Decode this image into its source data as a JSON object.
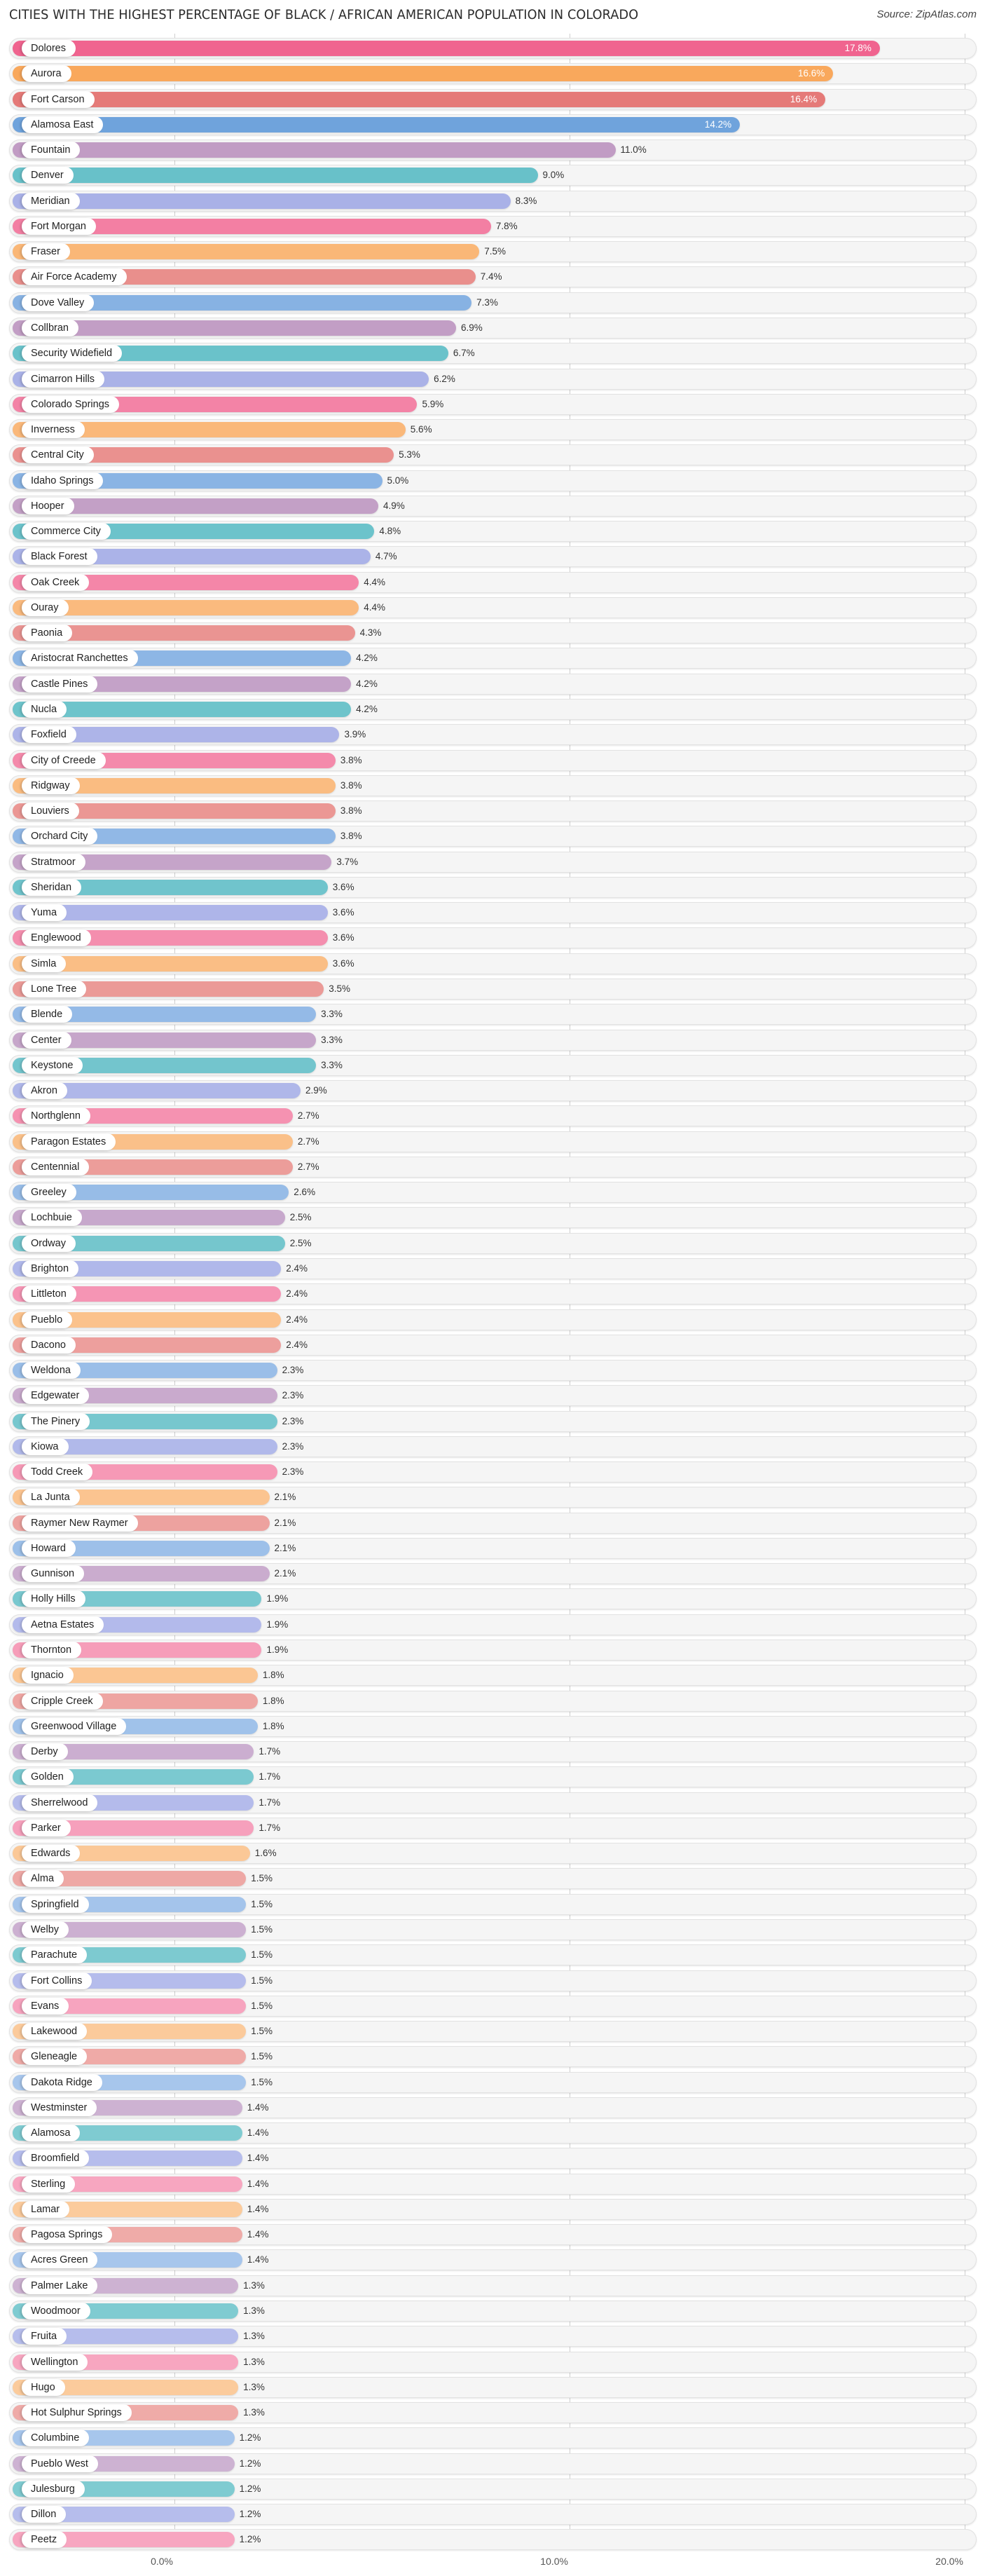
{
  "header": {
    "title": "CITIES WITH THE HIGHEST PERCENTAGE OF BLACK / AFRICAN AMERICAN POPULATION IN COLORADO",
    "source": "Source: ZipAtlas.com"
  },
  "axis": {
    "ticks": [
      {
        "label": "0.0%",
        "value": 0
      },
      {
        "label": "10.0%",
        "value": 10
      },
      {
        "label": "20.0%",
        "value": 20
      }
    ]
  },
  "palette": {
    "strong": [
      "#f0648f",
      "#f9a85c",
      "#e57a78",
      "#6fa3dc",
      "#b98fbb",
      "#59bac4",
      "#a0a9e3"
    ],
    "light": [
      "#f7a6c0",
      "#fbcb9c",
      "#efaba8",
      "#a7c6ec",
      "#cdb2d2",
      "#7fcbd1",
      "#b6bdec"
    ]
  },
  "chart_data": {
    "type": "bar",
    "orientation": "horizontal",
    "title": "CITIES WITH THE HIGHEST PERCENTAGE OF BLACK / AFRICAN AMERICAN POPULATION IN COLORADO",
    "xlabel": "",
    "ylabel": "",
    "xlim": [
      0,
      20
    ],
    "xticks": [
      "0.0%",
      "10.0%",
      "20.0%"
    ],
    "grid": true,
    "legend": null,
    "unit": "%",
    "categories": [
      "Dolores",
      "Aurora",
      "Fort Carson",
      "Alamosa East",
      "Fountain",
      "Denver",
      "Meridian",
      "Fort Morgan",
      "Fraser",
      "Air Force Academy",
      "Dove Valley",
      "Collbran",
      "Security Widefield",
      "Cimarron Hills",
      "Colorado Springs",
      "Inverness",
      "Central City",
      "Idaho Springs",
      "Hooper",
      "Commerce City",
      "Black Forest",
      "Oak Creek",
      "Ouray",
      "Paonia",
      "Aristocrat Ranchettes",
      "Castle Pines",
      "Nucla",
      "Foxfield",
      "City of Creede",
      "Ridgway",
      "Louviers",
      "Orchard City",
      "Stratmoor",
      "Sheridan",
      "Yuma",
      "Englewood",
      "Simla",
      "Lone Tree",
      "Blende",
      "Center",
      "Keystone",
      "Akron",
      "Northglenn",
      "Paragon Estates",
      "Centennial",
      "Greeley",
      "Lochbuie",
      "Ordway",
      "Brighton",
      "Littleton",
      "Pueblo",
      "Dacono",
      "Weldona",
      "Edgewater",
      "The Pinery",
      "Kiowa",
      "Todd Creek",
      "La Junta",
      "Raymer New Raymer",
      "Howard",
      "Gunnison",
      "Holly Hills",
      "Aetna Estates",
      "Thornton",
      "Ignacio",
      "Cripple Creek",
      "Greenwood Village",
      "Derby",
      "Golden",
      "Sherrelwood",
      "Parker",
      "Edwards",
      "Alma",
      "Springfield",
      "Welby",
      "Parachute",
      "Fort Collins",
      "Evans",
      "Lakewood",
      "Gleneagle",
      "Dakota Ridge",
      "Westminster",
      "Alamosa",
      "Broomfield",
      "Sterling",
      "Lamar",
      "Pagosa Springs",
      "Acres Green",
      "Palmer Lake",
      "Woodmoor",
      "Fruita",
      "Wellington",
      "Hugo",
      "Hot Sulphur Springs",
      "Columbine",
      "Pueblo West",
      "Julesburg",
      "Dillon",
      "Peetz"
    ],
    "values": [
      17.8,
      16.6,
      16.4,
      14.2,
      11.0,
      9.0,
      8.3,
      7.8,
      7.5,
      7.4,
      7.3,
      6.9,
      6.7,
      6.2,
      5.9,
      5.6,
      5.3,
      5.0,
      4.9,
      4.8,
      4.7,
      4.4,
      4.4,
      4.3,
      4.2,
      4.2,
      4.2,
      3.9,
      3.8,
      3.8,
      3.8,
      3.8,
      3.7,
      3.6,
      3.6,
      3.6,
      3.6,
      3.5,
      3.3,
      3.3,
      3.3,
      2.9,
      2.7,
      2.7,
      2.7,
      2.6,
      2.5,
      2.5,
      2.4,
      2.4,
      2.4,
      2.4,
      2.3,
      2.3,
      2.3,
      2.3,
      2.3,
      2.1,
      2.1,
      2.1,
      2.1,
      1.9,
      1.9,
      1.9,
      1.8,
      1.8,
      1.8,
      1.7,
      1.7,
      1.7,
      1.7,
      1.6,
      1.5,
      1.5,
      1.5,
      1.5,
      1.5,
      1.5,
      1.5,
      1.5,
      1.5,
      1.4,
      1.4,
      1.4,
      1.4,
      1.4,
      1.4,
      1.4,
      1.3,
      1.3,
      1.3,
      1.3,
      1.3,
      1.3,
      1.2,
      1.2,
      1.2,
      1.2,
      1.2
    ],
    "value_labels": [
      "17.8%",
      "16.6%",
      "16.4%",
      "14.2%",
      "11.0%",
      "9.0%",
      "8.3%",
      "7.8%",
      "7.5%",
      "7.4%",
      "7.3%",
      "6.9%",
      "6.7%",
      "6.2%",
      "5.9%",
      "5.6%",
      "5.3%",
      "5.0%",
      "4.9%",
      "4.8%",
      "4.7%",
      "4.4%",
      "4.4%",
      "4.3%",
      "4.2%",
      "4.2%",
      "4.2%",
      "3.9%",
      "3.8%",
      "3.8%",
      "3.8%",
      "3.8%",
      "3.7%",
      "3.6%",
      "3.6%",
      "3.6%",
      "3.6%",
      "3.5%",
      "3.3%",
      "3.3%",
      "3.3%",
      "2.9%",
      "2.7%",
      "2.7%",
      "2.7%",
      "2.6%",
      "2.5%",
      "2.5%",
      "2.4%",
      "2.4%",
      "2.4%",
      "2.4%",
      "2.3%",
      "2.3%",
      "2.3%",
      "2.3%",
      "2.3%",
      "2.1%",
      "2.1%",
      "2.1%",
      "2.1%",
      "1.9%",
      "1.9%",
      "1.9%",
      "1.8%",
      "1.8%",
      "1.8%",
      "1.7%",
      "1.7%",
      "1.7%",
      "1.7%",
      "1.6%",
      "1.5%",
      "1.5%",
      "1.5%",
      "1.5%",
      "1.5%",
      "1.5%",
      "1.5%",
      "1.5%",
      "1.5%",
      "1.4%",
      "1.4%",
      "1.4%",
      "1.4%",
      "1.4%",
      "1.4%",
      "1.4%",
      "1.3%",
      "1.3%",
      "1.3%",
      "1.3%",
      "1.3%",
      "1.3%",
      "1.2%",
      "1.2%",
      "1.2%",
      "1.2%",
      "1.2%"
    ],
    "values_inside_bar_count": 4
  }
}
